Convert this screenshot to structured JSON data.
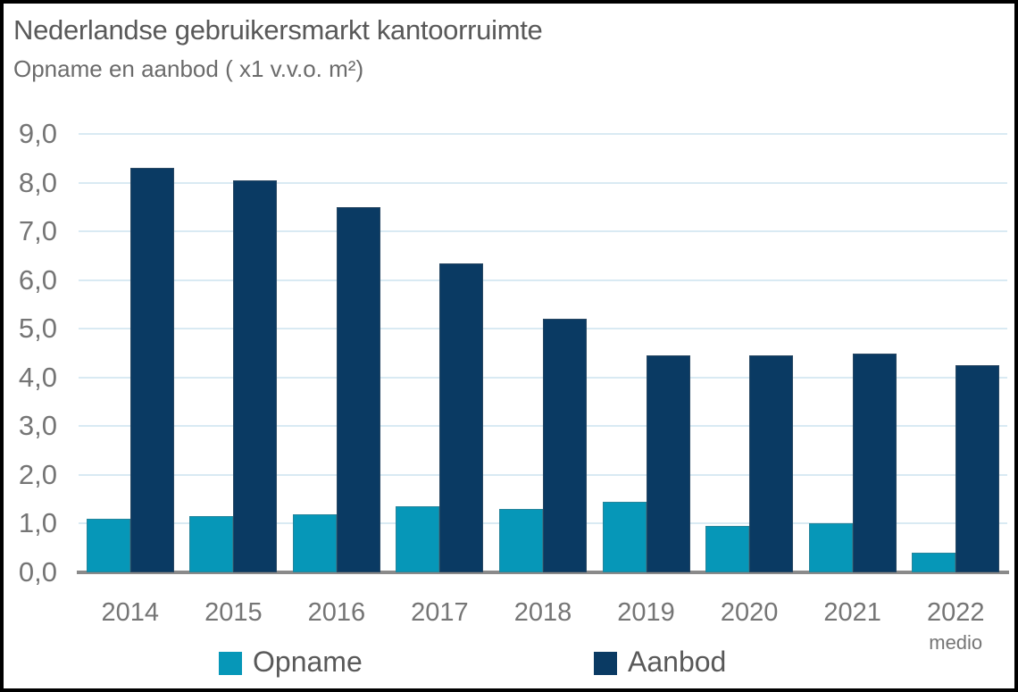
{
  "chart_data": {
    "type": "bar",
    "title": "Nederlandse gebruikersmarkt kantoorruimte",
    "subtitle": "Opname en aanbod ( x1 v.v.o. m²)",
    "categories": [
      "2014",
      "2015",
      "2016",
      "2017",
      "2018",
      "2019",
      "2020",
      "2021",
      "2022"
    ],
    "category_sublabels": [
      "",
      "",
      "",
      "",
      "",
      "",
      "",
      "",
      "medio"
    ],
    "series": [
      {
        "name": "Opname",
        "color": "#0697b8",
        "values": [
          1.1,
          1.15,
          1.2,
          1.35,
          1.3,
          1.45,
          0.95,
          1.0,
          0.4
        ]
      },
      {
        "name": "Aanbod",
        "color": "#0a3a63",
        "values": [
          8.3,
          8.05,
          7.5,
          6.35,
          5.2,
          4.45,
          4.45,
          4.5,
          4.25
        ]
      }
    ],
    "ylim": [
      0,
      9
    ],
    "yticks": [
      0,
      1,
      2,
      3,
      4,
      5,
      6,
      7,
      8,
      9
    ],
    "ytick_labels": [
      "0,0",
      "1,0",
      "2,0",
      "3,0",
      "4,0",
      "5,0",
      "6,0",
      "7,0",
      "8,0",
      "9,0"
    ],
    "grid": true,
    "gridline_color": "#d9eaf3",
    "axis_line_color": "#8a8a8a",
    "tick_label_color": "#757575",
    "legend_position": "bottom"
  },
  "legend": {
    "items": [
      {
        "label": "Opname",
        "color": "#0697b8"
      },
      {
        "label": "Aanbod",
        "color": "#0a3a63"
      }
    ]
  }
}
